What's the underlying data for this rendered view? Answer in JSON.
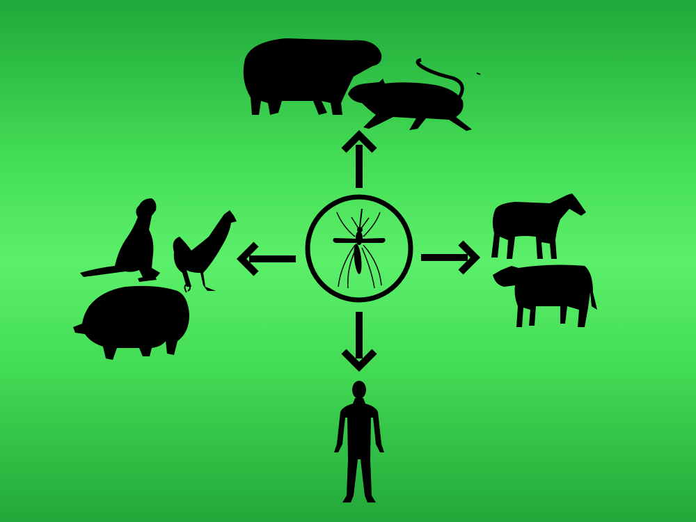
{
  "diagram": {
    "background_top": "#1fa83a",
    "background_mid": "#5cf06a",
    "silhouette_color": "#000000",
    "center": {
      "icon": "mosquito-icon"
    },
    "arrows": [
      "arrow-up-icon",
      "arrow-left-icon",
      "arrow-right-icon",
      "arrow-down-icon"
    ],
    "hosts": {
      "top": [
        "capybara-icon",
        "rat-icon"
      ],
      "left": [
        "dog-icon",
        "rooster-icon",
        "pig-icon"
      ],
      "right": [
        "horse-icon",
        "cow-icon"
      ],
      "bottom": [
        "human-icon"
      ]
    }
  }
}
